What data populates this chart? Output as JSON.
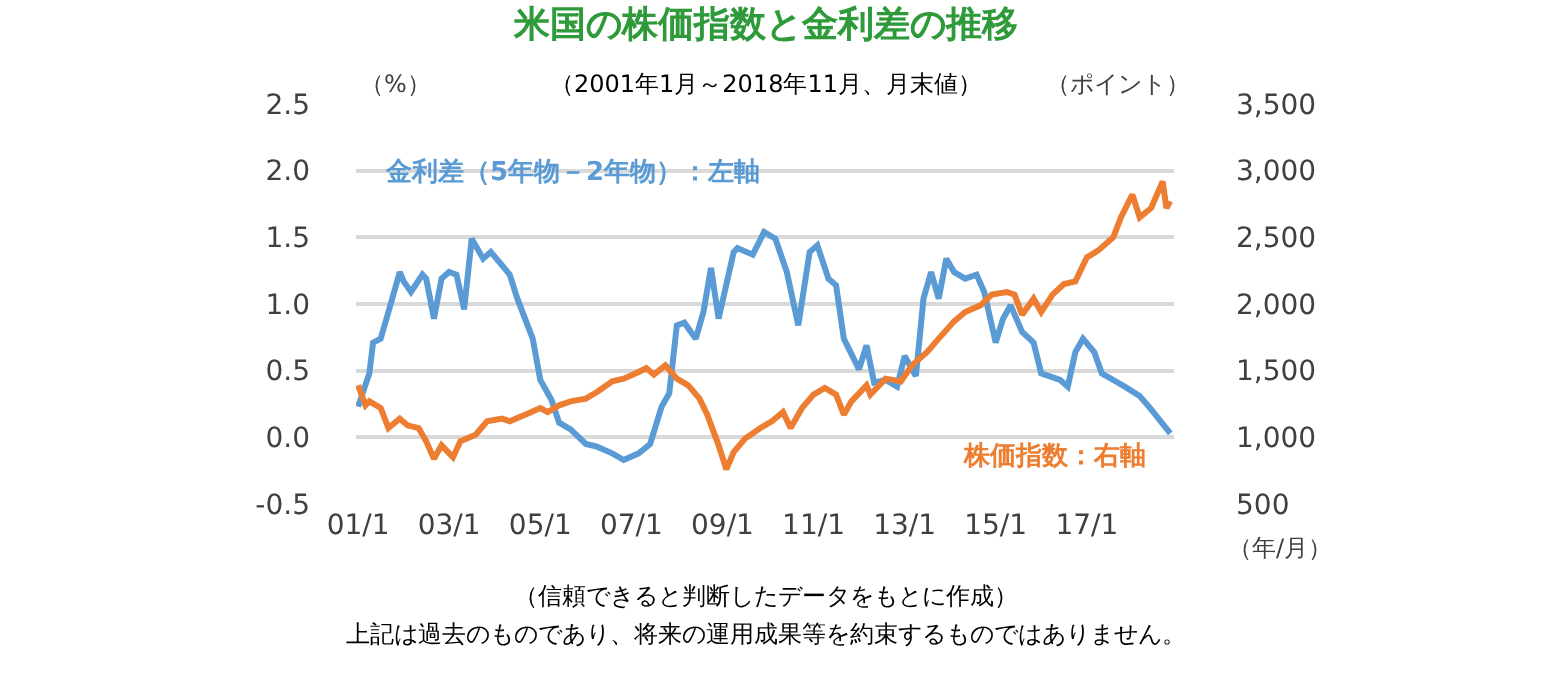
{
  "chart_data": {
    "type": "line",
    "title": "米国の株価指数と金利差の推移",
    "subtitle": "（2001年1月～2018年11月、月末値）",
    "xlabel": "（年/月）",
    "ylabel": "（%）",
    "y2label": "（ポイント）",
    "annotations": [
      "（信頼できると判断したデータをもとに作成）",
      "上記は過去のものであり、将来の運用成果等を約束するものではありません。"
    ],
    "series": [
      {
        "name": "金利差（5年物－2年物）：左軸",
        "color": "#5b9bd5",
        "x": [
          "2001-01",
          "2001-04",
          "2001-05",
          "2001-07",
          "2001-09",
          "2001-12",
          "2002-01",
          "2002-03",
          "2002-06",
          "2002-07",
          "2002-09",
          "2002-11",
          "2003-01",
          "2003-03",
          "2003-05",
          "2003-07",
          "2003-10",
          "2003-12",
          "2004-03",
          "2004-05",
          "2004-07",
          "2004-11",
          "2005-01",
          "2005-04",
          "2005-06",
          "2005-09",
          "2006-01",
          "2006-04",
          "2006-08",
          "2006-11",
          "2007-03",
          "2007-06",
          "2007-09",
          "2007-11",
          "2008-01",
          "2008-03",
          "2008-06",
          "2008-08",
          "2008-10",
          "2008-12",
          "2009-04",
          "2009-05",
          "2009-09",
          "2009-12",
          "2010-03",
          "2010-06",
          "2010-09",
          "2010-12",
          "2011-02",
          "2011-05",
          "2011-07",
          "2011-09",
          "2012-01",
          "2012-03",
          "2012-05",
          "2012-08",
          "2012-11",
          "2013-01",
          "2013-04",
          "2013-06",
          "2013-08",
          "2013-10",
          "2013-12",
          "2014-02",
          "2014-05",
          "2014-08",
          "2014-10",
          "2015-01",
          "2015-03",
          "2015-05",
          "2015-08",
          "2015-11",
          "2016-01",
          "2016-06",
          "2016-08",
          "2016-10",
          "2016-12",
          "2017-03",
          "2017-05",
          "2017-08",
          "2017-11",
          "2018-03",
          "2018-06",
          "2018-11"
        ],
        "values": [
          0.23,
          0.48,
          0.71,
          0.74,
          0.94,
          1.24,
          1.17,
          1.09,
          1.22,
          1.19,
          0.89,
          1.19,
          1.24,
          1.22,
          0.96,
          1.49,
          1.34,
          1.39,
          1.29,
          1.22,
          1.04,
          0.74,
          0.43,
          0.28,
          0.11,
          0.06,
          -0.05,
          -0.07,
          -0.12,
          -0.17,
          -0.12,
          -0.05,
          0.23,
          0.33,
          0.84,
          0.86,
          0.74,
          0.94,
          1.27,
          0.89,
          1.39,
          1.42,
          1.37,
          1.54,
          1.49,
          1.24,
          0.84,
          1.39,
          1.44,
          1.19,
          1.14,
          0.74,
          0.51,
          0.69,
          0.41,
          0.43,
          0.38,
          0.61,
          0.46,
          1.04,
          1.24,
          1.04,
          1.34,
          1.24,
          1.19,
          1.22,
          1.09,
          0.71,
          0.89,
          0.99,
          0.79,
          0.71,
          0.48,
          0.43,
          0.38,
          0.64,
          0.74,
          0.64,
          0.48,
          0.43,
          0.38,
          0.31,
          0.21,
          0.03
        ]
      },
      {
        "name": "株価指数：右軸",
        "color": "#ed7d31",
        "axis": "y2",
        "x": [
          "2001-01",
          "2001-03",
          "2001-04",
          "2001-07",
          "2001-09",
          "2001-12",
          "2002-02",
          "2002-05",
          "2002-07",
          "2002-09",
          "2002-11",
          "2003-02",
          "2003-04",
          "2003-08",
          "2003-11",
          "2004-03",
          "2004-05",
          "2004-09",
          "2005-01",
          "2005-03",
          "2005-06",
          "2005-09",
          "2006-01",
          "2006-04",
          "2006-08",
          "2006-11",
          "2007-03",
          "2007-05",
          "2007-07",
          "2007-10",
          "2008-01",
          "2008-04",
          "2008-07",
          "2008-09",
          "2008-12",
          "2009-02",
          "2009-04",
          "2009-07",
          "2009-11",
          "2010-02",
          "2010-05",
          "2010-07",
          "2010-10",
          "2011-01",
          "2011-04",
          "2011-07",
          "2011-09",
          "2011-11",
          "2012-03",
          "2012-04",
          "2012-08",
          "2012-12",
          "2013-03",
          "2013-07",
          "2013-10",
          "2014-02",
          "2014-05",
          "2014-09",
          "2014-12",
          "2015-04",
          "2015-06",
          "2015-08",
          "2015-11",
          "2016-01",
          "2016-04",
          "2016-07",
          "2016-10",
          "2017-01",
          "2017-04",
          "2017-08",
          "2017-10",
          "2018-01",
          "2018-03",
          "2018-06",
          "2018-09",
          "2018-10",
          "2018-11"
        ],
        "values": [
          1390,
          1240,
          1270,
          1220,
          1070,
          1140,
          1090,
          1070,
          970,
          840,
          940,
          850,
          970,
          1020,
          1120,
          1140,
          1120,
          1170,
          1220,
          1190,
          1240,
          1270,
          1290,
          1340,
          1420,
          1440,
          1490,
          1520,
          1470,
          1540,
          1440,
          1390,
          1290,
          1170,
          940,
          760,
          890,
          990,
          1070,
          1120,
          1190,
          1070,
          1220,
          1320,
          1370,
          1320,
          1170,
          1270,
          1390,
          1320,
          1440,
          1420,
          1540,
          1640,
          1740,
          1870,
          1940,
          1990,
          2070,
          2090,
          2070,
          1920,
          2040,
          1940,
          2070,
          2150,
          2170,
          2350,
          2400,
          2500,
          2650,
          2820,
          2650,
          2720,
          2920,
          2720,
          2770
        ]
      }
    ],
    "xlim": [
      "2000-12-15",
      "2018-12-01"
    ],
    "xticks": [
      {
        "value": "2001-01",
        "label": "01/1"
      },
      {
        "value": "2003-01",
        "label": "03/1"
      },
      {
        "value": "2005-01",
        "label": "05/1"
      },
      {
        "value": "2007-01",
        "label": "07/1"
      },
      {
        "value": "2009-01",
        "label": "09/1"
      },
      {
        "value": "2011-01",
        "label": "11/1"
      },
      {
        "value": "2013-01",
        "label": "13/1"
      },
      {
        "value": "2015-01",
        "label": "15/1"
      },
      {
        "value": "2017-01",
        "label": "17/1"
      }
    ],
    "ylim": [
      -0.5,
      2.5
    ],
    "yticks": [
      -0.5,
      {
        "value": 0,
        "label": "0.0"
      },
      0.5,
      {
        "value": 1,
        "label": "1.0"
      },
      1.5,
      {
        "value": 2,
        "label": "2.0"
      },
      2.5
    ],
    "y2lim": [
      500,
      3500
    ],
    "y2ticks": [
      500,
      {
        "value": 1000,
        "label": "1,000"
      },
      {
        "value": 1500,
        "label": "1,500"
      },
      {
        "value": 2000,
        "label": "2,000"
      },
      {
        "value": 2500,
        "label": "2,500"
      },
      {
        "value": 3000,
        "label": "3,000"
      },
      {
        "value": 3500,
        "label": "3,500"
      }
    ],
    "grid": "y",
    "legend": false,
    "marker": "none",
    "line_style": "solid"
  }
}
